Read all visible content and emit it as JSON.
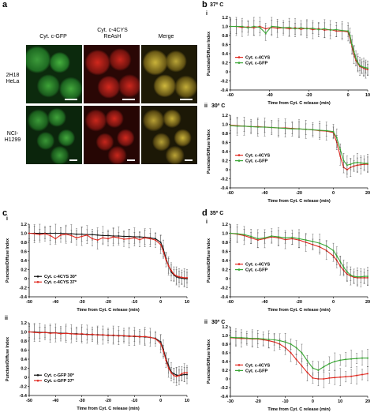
{
  "figure": {
    "panel_a": {
      "letter": "a",
      "columns": [
        "Cyt. c-GFP",
        "Cyt. c-4CYS\nReAsH",
        "Merge"
      ],
      "rows": [
        "2H18\nHeLa",
        "NCI-\nH1299"
      ]
    },
    "panel_b": {
      "letter": "b"
    },
    "panel_c": {
      "letter": "c"
    },
    "panel_d": {
      "letter": "d"
    }
  },
  "chart_data": [
    {
      "id": "b-i",
      "panel": "b",
      "sub": "i",
      "temp": "37º C",
      "type": "line",
      "xlabel": "Time from Cyt. C release (min)",
      "ylabel": "Punctate/Diffuse Index",
      "xlim": [
        -60,
        10
      ],
      "ylim": [
        -0.4,
        1.2
      ],
      "xticks": [
        -60,
        -40,
        -20,
        0,
        10
      ],
      "yticks": [
        -0.4,
        -0.2,
        0,
        0.2,
        0.4,
        0.6,
        0.8,
        1.0,
        1.2
      ],
      "legend": "center-left",
      "series": [
        {
          "name": "Cyt. c-4CYS",
          "color": "#e0281f",
          "x": [
            -60,
            -57,
            -54,
            -51,
            -48,
            -45,
            -42,
            -39,
            -36,
            -33,
            -30,
            -27,
            -24,
            -21,
            -18,
            -15,
            -12,
            -9,
            -6,
            -3,
            0,
            1,
            2,
            3,
            4,
            5,
            6,
            7,
            8,
            9,
            10
          ],
          "y": [
            1.0,
            1.0,
            0.98,
            0.99,
            0.97,
            1.0,
            0.95,
            0.98,
            0.96,
            0.97,
            0.95,
            0.97,
            0.94,
            0.96,
            0.93,
            0.95,
            0.92,
            0.93,
            0.9,
            0.9,
            0.88,
            0.75,
            0.55,
            0.38,
            0.25,
            0.18,
            0.12,
            0.1,
            0.08,
            0.06,
            0.05
          ]
        },
        {
          "name": "Cyt. c-GFP",
          "color": "#3aa635",
          "x": [
            -60,
            -57,
            -54,
            -51,
            -48,
            -45,
            -42,
            -39,
            -36,
            -33,
            -30,
            -27,
            -24,
            -21,
            -18,
            -15,
            -12,
            -9,
            -6,
            -3,
            0,
            1,
            2,
            3,
            4,
            5,
            6,
            7,
            8,
            9,
            10
          ],
          "y": [
            1.0,
            1.0,
            1.0,
            0.97,
            1.0,
            0.98,
            0.85,
            1.0,
            0.99,
            0.97,
            0.98,
            0.95,
            0.97,
            0.95,
            0.96,
            0.93,
            0.95,
            0.92,
            0.93,
            0.91,
            0.9,
            0.8,
            0.6,
            0.45,
            0.3,
            0.2,
            0.14,
            0.12,
            0.1,
            0.09,
            0.08
          ]
        }
      ]
    },
    {
      "id": "b-ii",
      "panel": "b",
      "sub": "ii",
      "temp": "30º C",
      "type": "line",
      "xlabel": "Time from Cyt. C release (min)",
      "ylabel": "Punctate/Diffuse Index",
      "xlim": [
        -60,
        20
      ],
      "ylim": [
        -0.4,
        1.2
      ],
      "xticks": [
        -60,
        -40,
        -20,
        0,
        20
      ],
      "yticks": [
        -0.4,
        -0.2,
        0,
        0.2,
        0.4,
        0.6,
        0.8,
        1.0,
        1.2
      ],
      "legend": "center-left",
      "series": [
        {
          "name": "Cyt. c-4CYS",
          "color": "#e0281f",
          "x": [
            -60,
            -56,
            -52,
            -48,
            -44,
            -40,
            -36,
            -32,
            -28,
            -24,
            -20,
            -16,
            -12,
            -8,
            -4,
            0,
            2,
            4,
            6,
            8,
            10,
            12,
            14,
            16,
            18,
            20
          ],
          "y": [
            0.98,
            0.97,
            0.96,
            0.95,
            0.95,
            0.94,
            0.93,
            0.92,
            0.92,
            0.91,
            0.9,
            0.89,
            0.88,
            0.86,
            0.85,
            0.82,
            0.6,
            0.3,
            0.05,
            0.0,
            0.05,
            0.08,
            0.1,
            0.11,
            0.12,
            0.12
          ]
        },
        {
          "name": "Cyt. c-GFP",
          "color": "#3aa635",
          "x": [
            -60,
            -56,
            -52,
            -48,
            -44,
            -40,
            -36,
            -32,
            -28,
            -24,
            -20,
            -16,
            -12,
            -8,
            -4,
            0,
            2,
            4,
            6,
            8,
            10,
            12,
            14,
            16,
            18,
            20
          ],
          "y": [
            0.97,
            0.96,
            0.96,
            0.95,
            0.94,
            0.94,
            0.93,
            0.92,
            0.91,
            0.9,
            0.9,
            0.89,
            0.88,
            0.87,
            0.86,
            0.84,
            0.7,
            0.45,
            0.2,
            0.1,
            0.12,
            0.15,
            0.16,
            0.15,
            0.14,
            0.14
          ]
        }
      ]
    },
    {
      "id": "c-i",
      "panel": "c",
      "sub": "i",
      "temp": "",
      "type": "line",
      "xlabel": "Time from Cyt. C release (min)",
      "ylabel": "Punctate/Diffuse Index",
      "xlim": [
        -50,
        10
      ],
      "ylim": [
        -0.4,
        1.2
      ],
      "xticks": [
        -50,
        -40,
        -30,
        -20,
        -10,
        0,
        10
      ],
      "yticks": [
        -0.4,
        -0.2,
        0,
        0.2,
        0.4,
        0.6,
        0.8,
        1.0,
        1.2
      ],
      "legend": "bottom-left",
      "series": [
        {
          "name": "Cyt. c-4CYS 30º",
          "color": "#111111",
          "x": [
            -50,
            -48,
            -46,
            -44,
            -42,
            -40,
            -38,
            -36,
            -34,
            -32,
            -30,
            -28,
            -26,
            -24,
            -22,
            -20,
            -18,
            -16,
            -14,
            -12,
            -10,
            -8,
            -6,
            -4,
            -2,
            0,
            1,
            2,
            3,
            4,
            5,
            6,
            7,
            8,
            9,
            10
          ],
          "y": [
            1.0,
            1.0,
            1.0,
            1.0,
            1.0,
            1.0,
            1.0,
            0.99,
            0.99,
            0.98,
            0.98,
            0.97,
            0.97,
            0.96,
            0.95,
            0.95,
            0.94,
            0.94,
            0.93,
            0.93,
            0.92,
            0.92,
            0.91,
            0.9,
            0.88,
            0.8,
            0.65,
            0.45,
            0.28,
            0.15,
            0.08,
            0.04,
            0.02,
            0.01,
            0.0,
            0.0
          ]
        },
        {
          "name": "Cyt. c-4CYS 37º",
          "color": "#e0281f",
          "x": [
            -50,
            -48,
            -46,
            -44,
            -42,
            -40,
            -38,
            -36,
            -34,
            -32,
            -30,
            -28,
            -26,
            -24,
            -22,
            -20,
            -18,
            -16,
            -14,
            -12,
            -10,
            -8,
            -6,
            -4,
            -2,
            0,
            1,
            2,
            3,
            4,
            5,
            6,
            7,
            8,
            9,
            10
          ],
          "y": [
            1.0,
            0.99,
            0.97,
            0.99,
            0.95,
            0.88,
            0.96,
            0.98,
            0.95,
            0.9,
            0.93,
            0.96,
            0.88,
            0.85,
            0.9,
            0.88,
            0.92,
            0.9,
            0.87,
            0.88,
            0.9,
            0.86,
            0.9,
            0.88,
            0.85,
            0.75,
            0.6,
            0.42,
            0.28,
            0.18,
            0.1,
            0.06,
            0.04,
            0.03,
            0.02,
            0.02
          ]
        }
      ]
    },
    {
      "id": "c-ii",
      "panel": "c",
      "sub": "ii",
      "temp": "",
      "type": "line",
      "xlabel": "Time from Cyt. C release (min)",
      "ylabel": "Punctate/Diffuse Index",
      "xlim": [
        -50,
        10
      ],
      "ylim": [
        -0.4,
        1.2
      ],
      "xticks": [
        -50,
        -40,
        -30,
        -20,
        -10,
        0,
        10
      ],
      "yticks": [
        -0.4,
        -0.2,
        0,
        0.2,
        0.4,
        0.6,
        0.8,
        1.0,
        1.2
      ],
      "legend": "bottom-left",
      "series": [
        {
          "name": "Cyt. c-GFP 30º",
          "color": "#111111",
          "x": [
            -50,
            -48,
            -46,
            -44,
            -42,
            -40,
            -38,
            -36,
            -34,
            -32,
            -30,
            -28,
            -26,
            -24,
            -22,
            -20,
            -18,
            -16,
            -14,
            -12,
            -10,
            -8,
            -6,
            -4,
            -2,
            0,
            1,
            2,
            3,
            4,
            5,
            6,
            7,
            8,
            9,
            10
          ],
          "y": [
            1.0,
            1.0,
            0.99,
            0.99,
            0.98,
            0.98,
            0.97,
            0.97,
            0.96,
            0.96,
            0.95,
            0.95,
            0.94,
            0.94,
            0.93,
            0.93,
            0.92,
            0.92,
            0.91,
            0.91,
            0.9,
            0.9,
            0.89,
            0.88,
            0.86,
            0.78,
            0.62,
            0.42,
            0.25,
            0.12,
            0.08,
            0.05,
            0.04,
            0.05,
            0.06,
            0.06
          ]
        },
        {
          "name": "Cyt. c-GFP 37º",
          "color": "#e0281f",
          "x": [
            -50,
            -48,
            -46,
            -44,
            -42,
            -40,
            -38,
            -36,
            -34,
            -32,
            -30,
            -28,
            -26,
            -24,
            -22,
            -20,
            -18,
            -16,
            -14,
            -12,
            -10,
            -8,
            -6,
            -4,
            -2,
            0,
            1,
            2,
            3,
            4,
            5,
            6,
            7,
            8,
            9,
            10
          ],
          "y": [
            1.0,
            0.99,
            0.98,
            0.99,
            0.97,
            0.98,
            0.96,
            0.97,
            0.96,
            0.95,
            0.96,
            0.94,
            0.95,
            0.93,
            0.94,
            0.92,
            0.93,
            0.91,
            0.92,
            0.9,
            0.91,
            0.89,
            0.9,
            0.88,
            0.85,
            0.74,
            0.58,
            0.38,
            0.2,
            0.1,
            0.04,
            0.02,
            0.04,
            0.08,
            0.1,
            0.1
          ]
        }
      ]
    },
    {
      "id": "d-i",
      "panel": "d",
      "sub": "i",
      "temp": "35º C",
      "type": "line",
      "xlabel": "Time from Cyt. C release (min)",
      "ylabel": "Punctate/Diffuse Index",
      "xlim": [
        -60,
        20
      ],
      "ylim": [
        -0.4,
        1.2
      ],
      "xticks": [
        -60,
        -40,
        -20,
        0,
        20
      ],
      "yticks": [
        -0.4,
        -0.2,
        0,
        0.2,
        0.4,
        0.6,
        0.8,
        1.0,
        1.2
      ],
      "legend": "center-left",
      "series": [
        {
          "name": "Cyt. c-4CYS",
          "color": "#e0281f",
          "x": [
            -60,
            -56,
            -52,
            -48,
            -44,
            -40,
            -36,
            -32,
            -28,
            -24,
            -20,
            -16,
            -12,
            -8,
            -4,
            0,
            2,
            4,
            6,
            8,
            10,
            12,
            14,
            16,
            18,
            20
          ],
          "y": [
            1.0,
            0.98,
            0.95,
            0.9,
            0.85,
            0.88,
            0.92,
            0.9,
            0.86,
            0.88,
            0.85,
            0.8,
            0.75,
            0.7,
            0.62,
            0.5,
            0.4,
            0.28,
            0.18,
            0.1,
            0.06,
            0.03,
            0.02,
            0.02,
            0.02,
            0.02
          ]
        },
        {
          "name": "Cyt. c-GFP",
          "color": "#3aa635",
          "x": [
            -60,
            -56,
            -52,
            -48,
            -44,
            -40,
            -36,
            -32,
            -28,
            -24,
            -20,
            -16,
            -12,
            -8,
            -4,
            0,
            2,
            4,
            6,
            8,
            10,
            12,
            14,
            16,
            18,
            20
          ],
          "y": [
            1.0,
            0.99,
            0.97,
            0.93,
            0.88,
            0.9,
            0.94,
            0.92,
            0.9,
            0.91,
            0.88,
            0.85,
            0.82,
            0.78,
            0.72,
            0.62,
            0.5,
            0.38,
            0.25,
            0.15,
            0.08,
            0.05,
            0.04,
            0.04,
            0.05,
            0.05
          ]
        }
      ]
    },
    {
      "id": "d-ii",
      "panel": "d",
      "sub": "ii",
      "temp": "30º C",
      "type": "line",
      "xlabel": "Time from Cyt. C release (min)",
      "ylabel": "Punctate/Diffuse Index",
      "xlim": [
        -30,
        20
      ],
      "ylim": [
        -0.4,
        1.2
      ],
      "xticks": [
        -30,
        -20,
        -10,
        0,
        10,
        20
      ],
      "yticks": [
        -0.4,
        -0.2,
        0,
        0.2,
        0.4,
        0.6,
        0.8,
        1.0,
        1.2
      ],
      "legend": "center-left",
      "series": [
        {
          "name": "Cyt. c-4CYS",
          "color": "#e0281f",
          "x": [
            -30,
            -28,
            -26,
            -24,
            -22,
            -20,
            -18,
            -16,
            -14,
            -12,
            -10,
            -8,
            -6,
            -4,
            -2,
            0,
            2,
            4,
            6,
            8,
            10,
            12,
            14,
            16,
            18,
            20
          ],
          "y": [
            0.95,
            0.94,
            0.93,
            0.93,
            0.92,
            0.92,
            0.9,
            0.88,
            0.85,
            0.8,
            0.72,
            0.6,
            0.45,
            0.3,
            0.15,
            0.02,
            0.0,
            0.0,
            0.02,
            0.03,
            0.04,
            0.05,
            0.06,
            0.08,
            0.1,
            0.12
          ]
        },
        {
          "name": "Cyt. c-GFP",
          "color": "#3aa635",
          "x": [
            -30,
            -28,
            -26,
            -24,
            -22,
            -20,
            -18,
            -16,
            -14,
            -12,
            -10,
            -8,
            -6,
            -4,
            -2,
            0,
            2,
            4,
            6,
            8,
            10,
            12,
            14,
            16,
            18,
            20
          ],
          "y": [
            0.96,
            0.95,
            0.95,
            0.94,
            0.93,
            0.93,
            0.92,
            0.91,
            0.9,
            0.88,
            0.85,
            0.8,
            0.72,
            0.6,
            0.42,
            0.25,
            0.2,
            0.28,
            0.35,
            0.4,
            0.43,
            0.45,
            0.46,
            0.47,
            0.48,
            0.48
          ]
        }
      ]
    }
  ]
}
